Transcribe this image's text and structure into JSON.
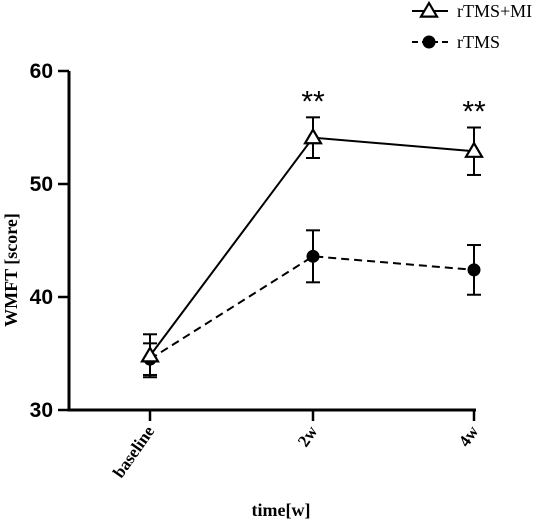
{
  "chart_data": {
    "type": "line",
    "title": "",
    "xlabel": "time[w]",
    "ylabel": "WMFT [score]",
    "categories": [
      "baseline",
      "2w",
      "4w"
    ],
    "ylim": [
      30,
      60
    ],
    "yticks": [
      30,
      40,
      50,
      60
    ],
    "grid": false,
    "legend_position": "top-right",
    "series": [
      {
        "name": "rTMS+MI",
        "marker": "open-triangle",
        "line_style": "solid",
        "color": "#000000",
        "values": [
          34.8,
          54.1,
          52.9
        ],
        "errors": [
          1.9,
          1.8,
          2.1
        ]
      },
      {
        "name": "rTMS",
        "marker": "filled-circle",
        "line_style": "dashed",
        "color": "#000000",
        "values": [
          34.5,
          43.6,
          42.4
        ],
        "errors": [
          1.4,
          2.3,
          2.2
        ]
      }
    ],
    "annotations": [
      {
        "category": "2w",
        "text": "**"
      },
      {
        "category": "4w",
        "text": "**"
      }
    ]
  }
}
